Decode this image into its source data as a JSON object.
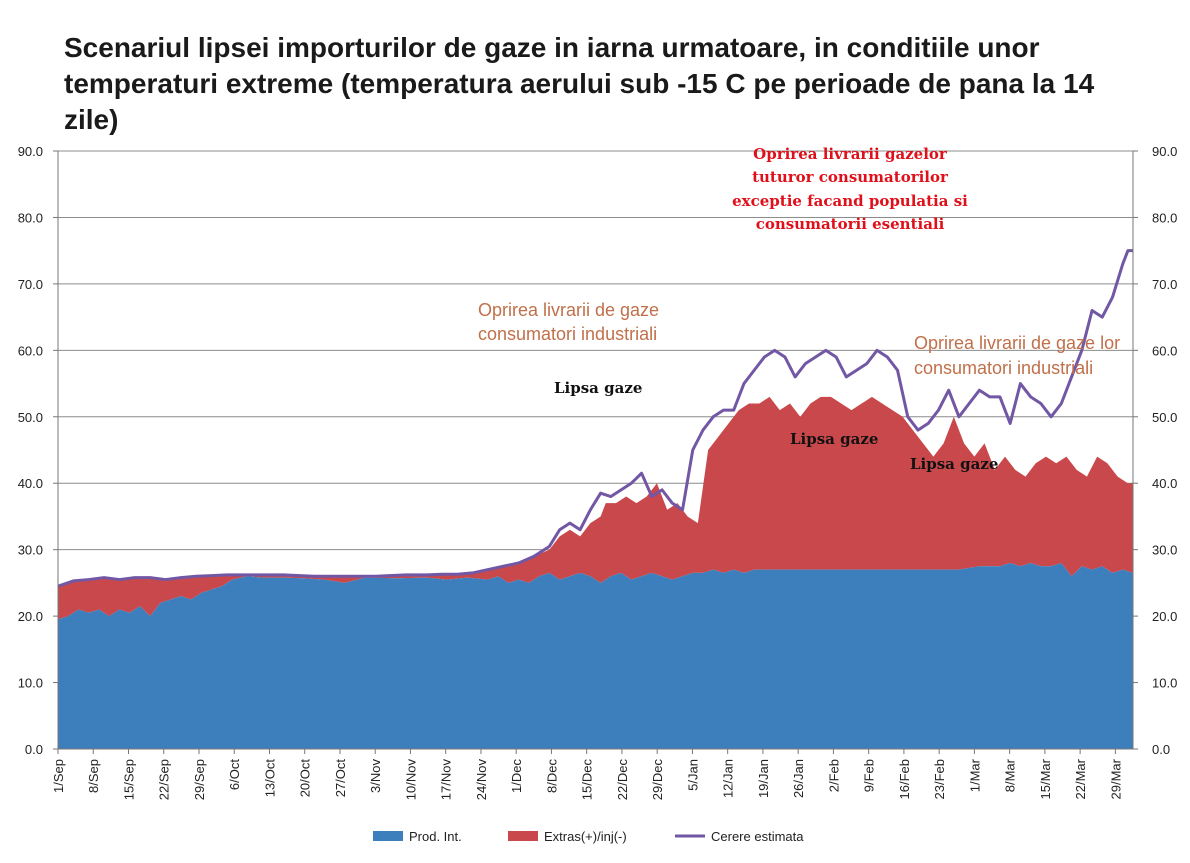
{
  "chart_data": {
    "type": "area",
    "title": "Scenariul lipsei importurilor de gaze in iarna urmatoare, in conditiile unor temperaturi extreme (temperatura aerului sub -15 C pe perioade de pana la 14 zile)",
    "ylim": [
      0,
      90
    ],
    "yticks": [
      "0.0",
      "10.0",
      "20.0",
      "30.0",
      "40.0",
      "50.0",
      "60.0",
      "70.0",
      "80.0",
      "90.0"
    ],
    "y2ticks": [
      "0.0",
      "10.0",
      "20.0",
      "30.0",
      "40.0",
      "50.0",
      "60.0",
      "70.0",
      "80.0",
      "90.0"
    ],
    "xlim": [
      0,
      210
    ],
    "xtick_labels": [
      "1/Sep",
      "8/Sep",
      "15/Sep",
      "22/Sep",
      "29/Sep",
      "6/Oct",
      "13/Oct",
      "20/Oct",
      "27/Oct",
      "3/Nov",
      "10/Nov",
      "17/Nov",
      "24/Nov",
      "1/Dec",
      "8/Dec",
      "15/Dec",
      "22/Dec",
      "29/Dec",
      "5/Jan",
      "12/Jan",
      "19/Jan",
      "26/Jan",
      "2/Feb",
      "9/Feb",
      "16/Feb",
      "23/Feb",
      "1/Mar",
      "8/Mar",
      "15/Mar",
      "22/Mar",
      "29/Mar"
    ],
    "grid": "horizontal",
    "legend_position": "bottom",
    "colors": {
      "prod": "#3c7fbc",
      "extras": "#c9484c",
      "cerere": "#7257a4"
    },
    "series": [
      {
        "name": "Prod. Int.",
        "kind": "area",
        "points": [
          [
            0,
            19.5
          ],
          [
            2,
            20
          ],
          [
            4,
            21
          ],
          [
            6,
            20.5
          ],
          [
            8,
            21
          ],
          [
            10,
            20
          ],
          [
            12,
            21
          ],
          [
            14,
            20.5
          ],
          [
            16,
            21.5
          ],
          [
            18,
            20
          ],
          [
            20,
            22
          ],
          [
            22,
            22.5
          ],
          [
            24,
            23
          ],
          [
            26,
            22.5
          ],
          [
            28,
            23.5
          ],
          [
            30,
            24
          ],
          [
            32,
            24.5
          ],
          [
            34,
            25.5
          ],
          [
            37,
            26
          ],
          [
            40,
            25.8
          ],
          [
            44,
            25.8
          ],
          [
            48,
            25.7
          ],
          [
            52,
            25.5
          ],
          [
            56,
            25
          ],
          [
            60,
            25.8
          ],
          [
            66,
            25.7
          ],
          [
            72,
            25.8
          ],
          [
            76,
            25.5
          ],
          [
            80,
            25.8
          ],
          [
            84,
            25.5
          ],
          [
            86,
            26
          ],
          [
            88,
            25
          ],
          [
            90,
            25.5
          ],
          [
            92,
            25
          ],
          [
            94,
            26
          ],
          [
            96,
            26.5
          ],
          [
            98,
            25.5
          ],
          [
            100,
            26
          ],
          [
            102,
            26.5
          ],
          [
            104,
            26
          ],
          [
            106,
            25
          ],
          [
            108,
            26
          ],
          [
            110,
            26.5
          ],
          [
            112,
            25.5
          ],
          [
            114,
            26
          ],
          [
            116,
            26.5
          ],
          [
            118,
            26
          ],
          [
            120,
            25.5
          ],
          [
            122,
            26
          ],
          [
            124,
            26.5
          ],
          [
            126,
            26.5
          ],
          [
            128,
            27
          ],
          [
            130,
            26.5
          ],
          [
            132,
            27
          ],
          [
            134,
            26.5
          ],
          [
            136,
            27
          ],
          [
            138,
            27
          ],
          [
            140,
            27
          ],
          [
            144,
            27
          ],
          [
            148,
            27
          ],
          [
            152,
            27
          ],
          [
            156,
            27
          ],
          [
            160,
            27
          ],
          [
            164,
            27
          ],
          [
            168,
            27
          ],
          [
            172,
            27
          ],
          [
            176,
            27
          ],
          [
            180,
            27.5
          ],
          [
            184,
            27.5
          ],
          [
            186,
            28
          ],
          [
            188,
            27.5
          ],
          [
            190,
            28
          ],
          [
            192,
            27.5
          ],
          [
            194,
            27.5
          ],
          [
            196,
            28
          ],
          [
            198,
            26
          ],
          [
            200,
            27.5
          ],
          [
            202,
            27
          ],
          [
            204,
            27.5
          ],
          [
            206,
            26.5
          ],
          [
            208,
            27
          ],
          [
            210,
            26.5
          ]
        ]
      },
      {
        "name": "Extras(+)/inj(-)",
        "kind": "area_top",
        "points": [
          [
            0,
            24.5
          ],
          [
            3,
            25.3
          ],
          [
            6,
            25.5
          ],
          [
            9,
            25.8
          ],
          [
            12,
            25.5
          ],
          [
            15,
            25.8
          ],
          [
            18,
            25.8
          ],
          [
            21,
            25.5
          ],
          [
            24,
            25.8
          ],
          [
            27,
            26
          ],
          [
            30,
            26.1
          ],
          [
            33,
            26.2
          ],
          [
            36,
            26.2
          ],
          [
            40,
            26.2
          ],
          [
            44,
            26.2
          ],
          [
            50,
            26
          ],
          [
            56,
            26
          ],
          [
            62,
            26
          ],
          [
            68,
            26.2
          ],
          [
            72,
            26.2
          ],
          [
            75,
            26.3
          ],
          [
            78,
            26.3
          ],
          [
            81,
            26.5
          ],
          [
            84,
            27
          ],
          [
            87,
            27.5
          ],
          [
            90,
            28
          ],
          [
            93,
            29
          ],
          [
            96,
            30
          ],
          [
            98,
            32
          ],
          [
            100,
            33
          ],
          [
            102,
            32
          ],
          [
            104,
            34
          ],
          [
            106,
            35
          ],
          [
            107,
            37
          ],
          [
            109,
            37
          ],
          [
            111,
            38
          ],
          [
            113,
            37
          ],
          [
            115,
            38
          ],
          [
            117,
            40
          ],
          [
            119,
            36
          ],
          [
            121,
            37
          ],
          [
            123,
            35
          ],
          [
            125,
            34
          ],
          [
            127,
            45
          ],
          [
            129,
            47
          ],
          [
            131,
            49
          ],
          [
            133,
            51
          ],
          [
            135,
            52
          ],
          [
            137,
            52
          ],
          [
            139,
            53
          ],
          [
            141,
            51
          ],
          [
            143,
            52
          ],
          [
            145,
            50
          ],
          [
            147,
            52
          ],
          [
            149,
            53
          ],
          [
            151,
            53
          ],
          [
            153,
            52
          ],
          [
            155,
            51
          ],
          [
            157,
            52
          ],
          [
            159,
            53
          ],
          [
            161,
            52
          ],
          [
            163,
            51
          ],
          [
            165,
            50
          ],
          [
            167,
            48
          ],
          [
            169,
            46
          ],
          [
            171,
            44
          ],
          [
            173,
            46
          ],
          [
            175,
            50
          ],
          [
            177,
            46
          ],
          [
            179,
            44
          ],
          [
            181,
            46
          ],
          [
            183,
            42
          ],
          [
            185,
            44
          ],
          [
            187,
            42
          ],
          [
            189,
            41
          ],
          [
            191,
            43
          ],
          [
            193,
            44
          ],
          [
            195,
            43
          ],
          [
            197,
            44
          ],
          [
            199,
            42
          ],
          [
            201,
            41
          ],
          [
            203,
            44
          ],
          [
            205,
            43
          ],
          [
            207,
            41
          ],
          [
            209,
            40
          ],
          [
            210,
            40
          ]
        ]
      },
      {
        "name": "Cerere estimata",
        "kind": "line",
        "points": [
          [
            0,
            24.5
          ],
          [
            3,
            25.3
          ],
          [
            6,
            25.5
          ],
          [
            9,
            25.8
          ],
          [
            12,
            25.5
          ],
          [
            15,
            25.8
          ],
          [
            18,
            25.8
          ],
          [
            21,
            25.5
          ],
          [
            24,
            25.8
          ],
          [
            27,
            26
          ],
          [
            30,
            26.1
          ],
          [
            33,
            26.2
          ],
          [
            36,
            26.2
          ],
          [
            40,
            26.2
          ],
          [
            44,
            26.2
          ],
          [
            50,
            26
          ],
          [
            56,
            26
          ],
          [
            62,
            26
          ],
          [
            68,
            26.2
          ],
          [
            72,
            26.2
          ],
          [
            75,
            26.3
          ],
          [
            78,
            26.3
          ],
          [
            81,
            26.5
          ],
          [
            84,
            27
          ],
          [
            87,
            27.5
          ],
          [
            90,
            28
          ],
          [
            93,
            29
          ],
          [
            96,
            30.5
          ],
          [
            98,
            33
          ],
          [
            100,
            34
          ],
          [
            102,
            33
          ],
          [
            104,
            36
          ],
          [
            106,
            38.5
          ],
          [
            108,
            38
          ],
          [
            110,
            39
          ],
          [
            112,
            40
          ],
          [
            114,
            41.5
          ],
          [
            116,
            38
          ],
          [
            118,
            39
          ],
          [
            120,
            37
          ],
          [
            122,
            36
          ],
          [
            124,
            45
          ],
          [
            126,
            48
          ],
          [
            128,
            50
          ],
          [
            130,
            51
          ],
          [
            132,
            51
          ],
          [
            134,
            55
          ],
          [
            136,
            57
          ],
          [
            138,
            59
          ],
          [
            140,
            60
          ],
          [
            142,
            59
          ],
          [
            144,
            56
          ],
          [
            146,
            58
          ],
          [
            148,
            59
          ],
          [
            150,
            60
          ],
          [
            152,
            59
          ],
          [
            154,
            56
          ],
          [
            156,
            57
          ],
          [
            158,
            58
          ],
          [
            160,
            60
          ],
          [
            162,
            59
          ],
          [
            164,
            57
          ],
          [
            166,
            50
          ],
          [
            168,
            48
          ],
          [
            170,
            49
          ],
          [
            172,
            51
          ],
          [
            174,
            54
          ],
          [
            176,
            50
          ],
          [
            178,
            52
          ],
          [
            180,
            54
          ],
          [
            182,
            53
          ],
          [
            184,
            53
          ],
          [
            186,
            49
          ],
          [
            188,
            55
          ],
          [
            190,
            53
          ],
          [
            192,
            52
          ],
          [
            194,
            50
          ],
          [
            196,
            52
          ],
          [
            198,
            56
          ],
          [
            200,
            60
          ],
          [
            202,
            66
          ],
          [
            204,
            65
          ],
          [
            206,
            68
          ],
          [
            208,
            73
          ],
          [
            209,
            75
          ],
          [
            210,
            75
          ]
        ]
      }
    ],
    "annotations": [
      {
        "text": "Oprirea livrarii gazelor",
        "style": "red"
      },
      {
        "text": "tuturor consumatorilor",
        "style": "red"
      },
      {
        "text": "exceptie facand populatia si",
        "style": "red"
      },
      {
        "text": "consumatorii esentiali",
        "style": "red"
      },
      {
        "text": "Oprirea livrarii de gaze",
        "style": "orange"
      },
      {
        "text": "consumatori industriali",
        "style": "orange"
      },
      {
        "text": "Oprirea livrarii de gaze lor",
        "style": "orange"
      },
      {
        "text": "consumatori industriali",
        "style": "orange"
      },
      {
        "text": "Lipsa gaze",
        "style": "black"
      },
      {
        "text": "Lipsa gaze",
        "style": "black"
      },
      {
        "text": "Lipsa gaze",
        "style": "black"
      }
    ]
  }
}
